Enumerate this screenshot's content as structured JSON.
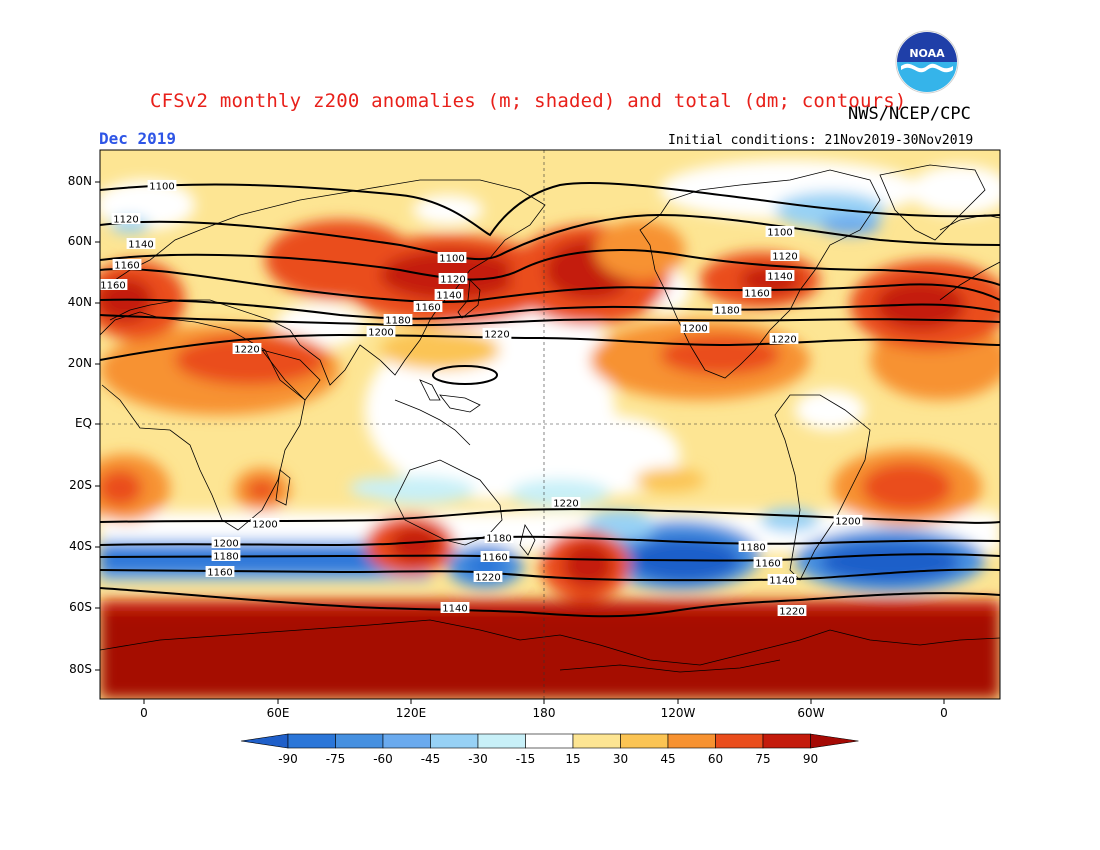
{
  "header": {
    "title": "CFSv2 monthly z200 anomalies (m; shaded) and total (dm; contours)",
    "agency": "NWS/NCEP/CPC",
    "month": "Dec 2019",
    "initial_conditions": "Initial conditions: 21Nov2019-30Nov2019"
  },
  "logo": {
    "icon": "noaa-logo-icon",
    "text": "NOAA"
  },
  "map": {
    "lat_labels": [
      "80N",
      "60N",
      "40N",
      "20N",
      "EQ",
      "20S",
      "40S",
      "60S",
      "80S"
    ],
    "lon_labels": [
      "0",
      "60E",
      "120E",
      "180",
      "120W",
      "60W",
      "0"
    ],
    "contour_labels": [
      "1100",
      "1120",
      "1140",
      "1160",
      "1160",
      "1100",
      "1120",
      "1140",
      "1160",
      "1180",
      "1200",
      "1220",
      "1220",
      "1100",
      "1120",
      "1140",
      "1160",
      "1180",
      "1200",
      "1220",
      "1220",
      "1200",
      "1180",
      "1160",
      "1220",
      "1200",
      "1180",
      "1160",
      "1140",
      "1220",
      "1200",
      "1180",
      "1160",
      "1140"
    ]
  },
  "colorbar": {
    "labels": [
      "-90",
      "-75",
      "-60",
      "-45",
      "-30",
      "-15",
      "15",
      "30",
      "45",
      "60",
      "75",
      "90"
    ],
    "colors": [
      "#1f5fc9",
      "#2b76d8",
      "#4690e0",
      "#6aaaee",
      "#97d1f5",
      "#c8f0f8",
      "#ffffff",
      "#fde593",
      "#fbc454",
      "#f79231",
      "#ea4d1c",
      "#c41b0c",
      "#a50a05"
    ]
  }
}
